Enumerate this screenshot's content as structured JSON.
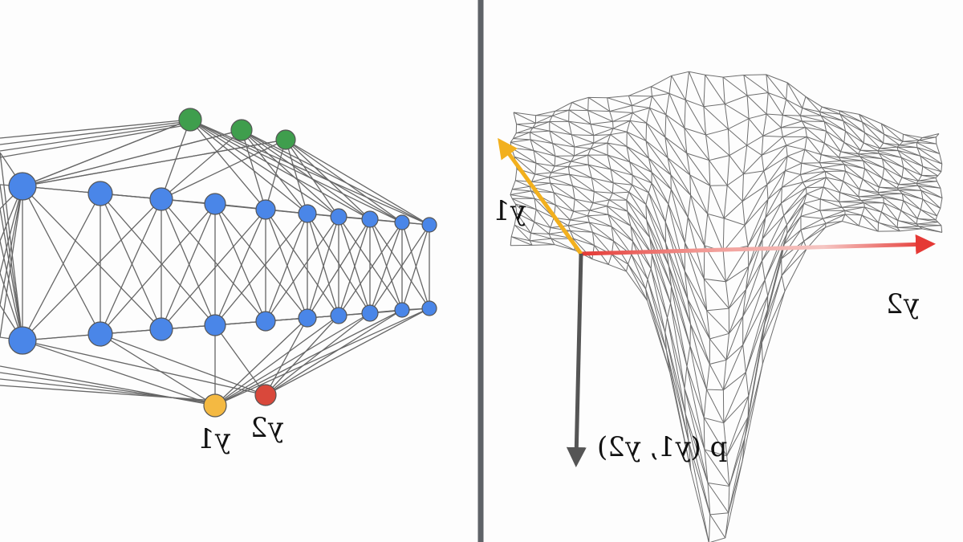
{
  "labels": {
    "nn_output_1": "y1",
    "nn_output_2": "y2",
    "axis_1": "y1",
    "axis_2": "y2",
    "axis_vertical": "p (y1, y2)"
  },
  "colors": {
    "edge": "#666666",
    "divider": "#5f6368",
    "hidden_node": "#4a86e8",
    "top_node": "#3f9e4d",
    "output_node_1": "#f4b942",
    "output_node_2": "#d9483b",
    "axis_1": "#f2b01e",
    "axis_2": "#e53935",
    "axis_vertical": "#555555",
    "mesh": "#6e6e6e"
  }
}
